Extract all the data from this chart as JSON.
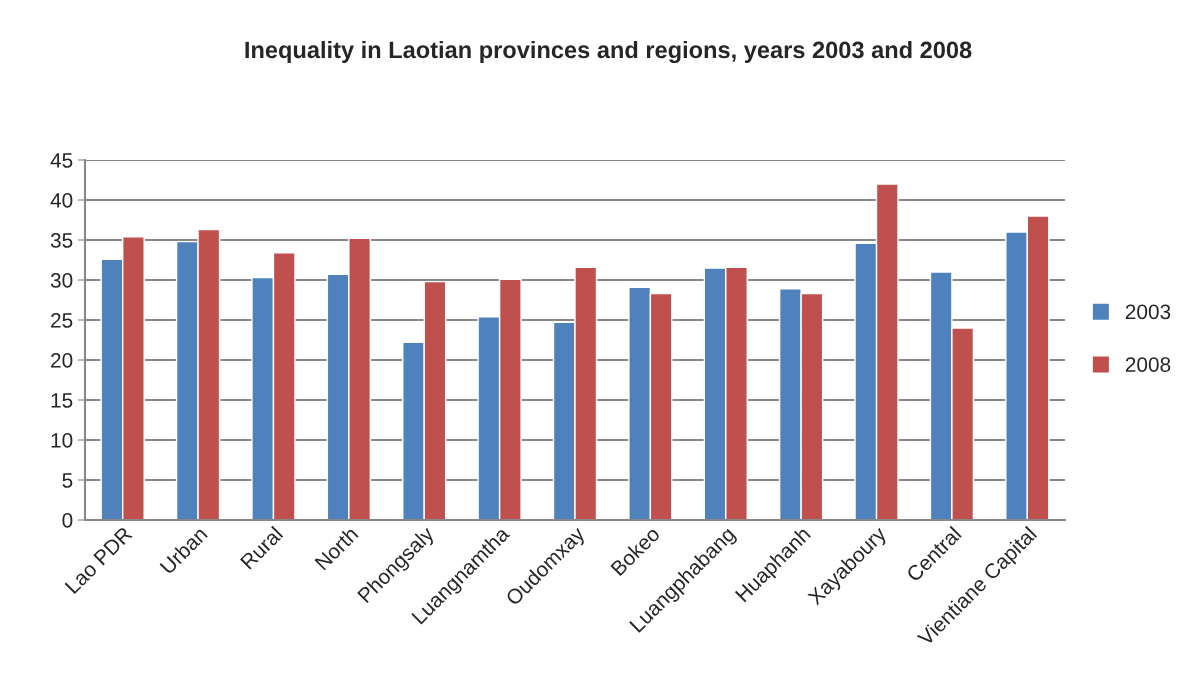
{
  "chart_data": {
    "type": "bar",
    "title": "Inequality in Laotian provinces and regions, years 2003 and 2008",
    "categories": [
      "Lao PDR",
      "Urban",
      "Rural",
      "North",
      "Phongsaly",
      "Luangnamtha",
      "Oudomxay",
      "Bokeo",
      "Luangphabang",
      "Huaphanh",
      "Xayaboury",
      "Central",
      "Vientiane Capital"
    ],
    "series": [
      {
        "name": "2003",
        "color": "#4f81bd",
        "values": [
          32.6,
          34.8,
          30.3,
          30.7,
          22.2,
          25.4,
          24.7,
          29.1,
          31.5,
          28.9,
          34.6,
          31.0,
          36.0
        ]
      },
      {
        "name": "2008",
        "color": "#c0504d",
        "values": [
          35.4,
          36.3,
          33.4,
          35.2,
          29.8,
          30.1,
          31.6,
          28.3,
          31.6,
          28.3,
          42.0,
          24.0,
          38.0
        ]
      }
    ],
    "ylim": [
      0,
      45
    ],
    "yticks": [
      0,
      5,
      10,
      15,
      20,
      25,
      30,
      35,
      40,
      45
    ],
    "grid": "y",
    "legend": "right"
  }
}
